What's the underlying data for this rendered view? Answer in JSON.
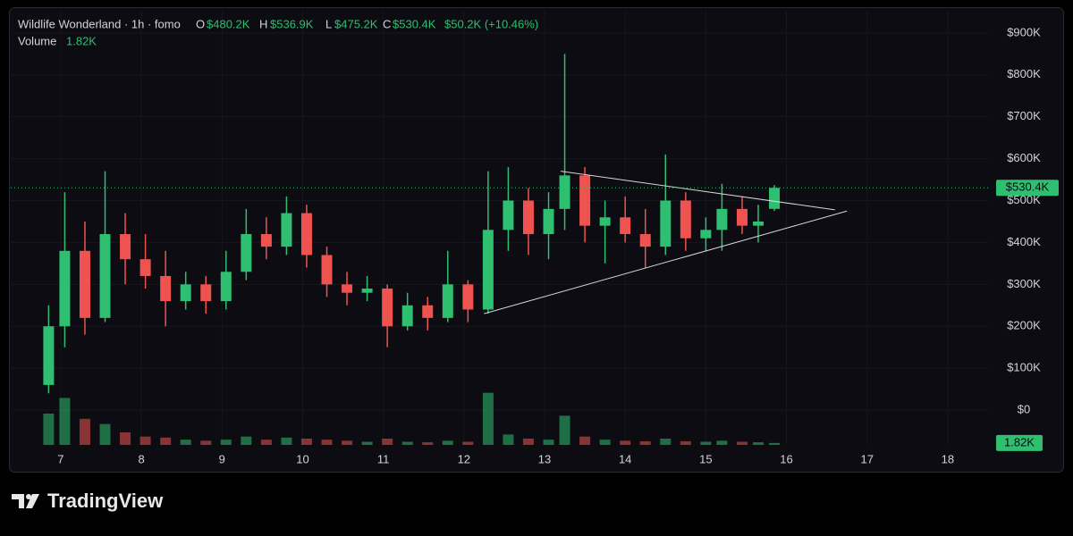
{
  "chart_data": {
    "type": "candlestick",
    "header": {
      "title": "Wildlife Wonderland · 1h · fomo",
      "open_label": "O",
      "open": "$480.2K",
      "high_label": "H",
      "high": "$536.9K",
      "low_label": "L",
      "low": "$475.2K",
      "close_label": "C",
      "close": "$530.4K",
      "change": "$50.2K (+10.46%)",
      "volume_label": "Volume",
      "volume": "1.82K"
    },
    "brand": "TradingView",
    "up_color": "#2fbf71",
    "down_color": "#ef5350",
    "xlim": [
      6.38,
      18.5
    ],
    "xticks": [
      7,
      8,
      9,
      10,
      11,
      12,
      13,
      14,
      15,
      16,
      17,
      18
    ],
    "ylim": [
      -83000,
      953000
    ],
    "yticks": [
      {
        "value": 0,
        "label": "$0"
      },
      {
        "value": 100000,
        "label": "$100K"
      },
      {
        "value": 200000,
        "label": "$200K"
      },
      {
        "value": 300000,
        "label": "$300K"
      },
      {
        "value": 400000,
        "label": "$400K"
      },
      {
        "value": 500000,
        "label": "$500K"
      },
      {
        "value": 600000,
        "label": "$600K"
      },
      {
        "value": 700000,
        "label": "$700K"
      },
      {
        "value": 800000,
        "label": "$800K"
      },
      {
        "value": 900000,
        "label": "$900K"
      }
    ],
    "volume_ylim": [
      0,
      60000
    ],
    "last_price": {
      "value": 530400,
      "label": "$530.4K"
    },
    "last_volume": {
      "value": 1820,
      "label": "1.82K"
    },
    "candles": {
      "x": [
        6.85,
        7.05,
        7.3,
        7.55,
        7.8,
        8.05,
        8.3,
        8.55,
        8.8,
        9.05,
        9.3,
        9.55,
        9.8,
        10.05,
        10.3,
        10.55,
        10.8,
        11.05,
        11.3,
        11.55,
        11.8,
        12.05,
        12.3,
        12.55,
        12.8,
        13.05,
        13.25,
        13.5,
        13.75,
        14.0,
        14.25,
        14.5,
        14.75,
        15.0,
        15.2,
        15.45,
        15.65,
        15.85
      ],
      "open": [
        60000,
        200000,
        380000,
        220000,
        420000,
        360000,
        320000,
        260000,
        300000,
        260000,
        330000,
        420000,
        390000,
        470000,
        370000,
        300000,
        280000,
        290000,
        200000,
        250000,
        220000,
        300000,
        240000,
        430000,
        500000,
        420000,
        480000,
        560000,
        440000,
        460000,
        420000,
        390000,
        500000,
        410000,
        430000,
        480000,
        440000,
        480200
      ],
      "high": [
        250000,
        520000,
        450000,
        570000,
        470000,
        420000,
        380000,
        330000,
        320000,
        380000,
        480000,
        460000,
        510000,
        490000,
        390000,
        330000,
        320000,
        300000,
        280000,
        270000,
        380000,
        310000,
        570000,
        580000,
        530000,
        520000,
        850000,
        580000,
        500000,
        510000,
        480000,
        610000,
        520000,
        460000,
        540000,
        510000,
        490000,
        536900
      ],
      "low": [
        40000,
        150000,
        180000,
        210000,
        300000,
        290000,
        200000,
        240000,
        230000,
        240000,
        310000,
        360000,
        370000,
        340000,
        270000,
        250000,
        260000,
        150000,
        190000,
        190000,
        210000,
        210000,
        230000,
        380000,
        370000,
        360000,
        430000,
        400000,
        350000,
        400000,
        340000,
        370000,
        380000,
        380000,
        380000,
        420000,
        400000,
        475200
      ],
      "close": [
        200000,
        380000,
        220000,
        420000,
        360000,
        320000,
        260000,
        300000,
        260000,
        330000,
        420000,
        390000,
        470000,
        370000,
        300000,
        280000,
        290000,
        200000,
        250000,
        220000,
        300000,
        240000,
        430000,
        500000,
        420000,
        480000,
        560000,
        440000,
        460000,
        420000,
        390000,
        500000,
        410000,
        430000,
        480000,
        440000,
        450000,
        530400
      ],
      "volume": [
        30000,
        45000,
        25000,
        20000,
        12000,
        8000,
        7000,
        5000,
        4000,
        5000,
        8000,
        5000,
        7000,
        6000,
        5000,
        4000,
        3000,
        6000,
        3000,
        2500,
        4000,
        3000,
        50000,
        10000,
        6000,
        5000,
        28000,
        8000,
        5000,
        4000,
        3500,
        6000,
        3500,
        3000,
        4000,
        3000,
        2500,
        1820
      ]
    },
    "trendlines": [
      {
        "x": [
          13.2,
          16.6
        ],
        "y": [
          570000,
          478000
        ]
      },
      {
        "x": [
          12.25,
          16.75
        ],
        "y": [
          230000,
          475000
        ]
      }
    ]
  }
}
